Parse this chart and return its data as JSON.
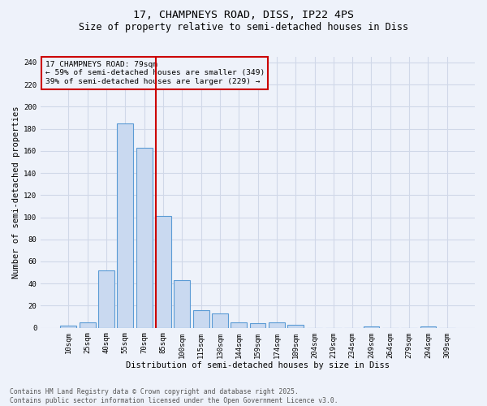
{
  "title": "17, CHAMPNEYS ROAD, DISS, IP22 4PS",
  "subtitle": "Size of property relative to semi-detached houses in Diss",
  "xlabel": "Distribution of semi-detached houses by size in Diss",
  "ylabel": "Number of semi-detached properties",
  "categories": [
    "10sqm",
    "25sqm",
    "40sqm",
    "55sqm",
    "70sqm",
    "85sqm",
    "100sqm",
    "115sqm",
    "130sqm",
    "144sqm",
    "159sqm",
    "174sqm",
    "189sqm",
    "204sqm",
    "219sqm",
    "234sqm",
    "249sqm",
    "264sqm",
    "279sqm",
    "294sqm",
    "309sqm"
  ],
  "values": [
    2,
    5,
    52,
    185,
    163,
    101,
    43,
    16,
    13,
    5,
    4,
    5,
    3,
    0,
    0,
    0,
    1,
    0,
    0,
    1,
    0
  ],
  "bar_color": "#c9d9f0",
  "bar_edge_color": "#5b9bd5",
  "grid_color": "#d0d8e8",
  "background_color": "#eef2fa",
  "vline_color": "#cc0000",
  "annotation_text": "17 CHAMPNEYS ROAD: 79sqm\n← 59% of semi-detached houses are smaller (349)\n39% of semi-detached houses are larger (229) →",
  "annotation_box_color": "#cc0000",
  "ylim": [
    0,
    245
  ],
  "yticks": [
    0,
    20,
    40,
    60,
    80,
    100,
    120,
    140,
    160,
    180,
    200,
    220,
    240
  ],
  "footer": "Contains HM Land Registry data © Crown copyright and database right 2025.\nContains public sector information licensed under the Open Government Licence v3.0.",
  "title_fontsize": 9.5,
  "subtitle_fontsize": 8.5,
  "label_fontsize": 7.5,
  "tick_fontsize": 6.5,
  "annotation_fontsize": 6.8,
  "footer_fontsize": 5.8
}
